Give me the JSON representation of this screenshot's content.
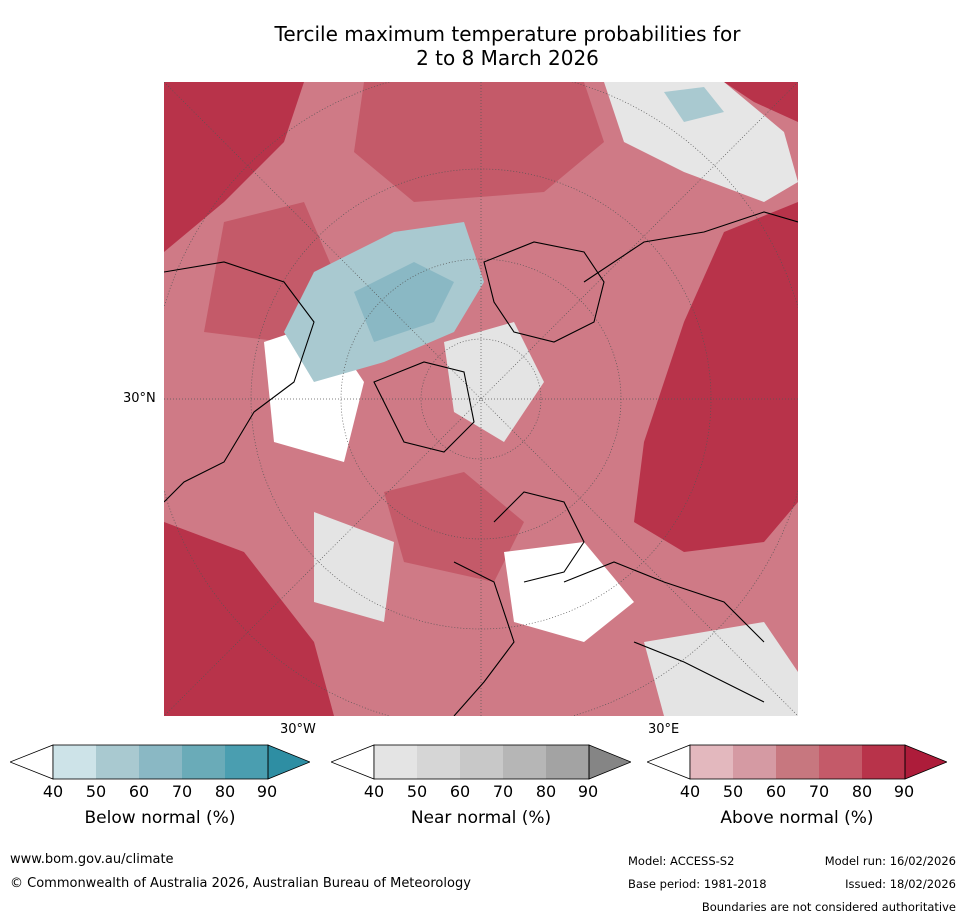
{
  "title": {
    "line1": "Tercile maximum temperature probabilities for",
    "line2": "2 to 8 March 2026"
  },
  "map": {
    "labels": {
      "lat_30n": "30°N",
      "lon_30w": "30°W",
      "lon_30e": "30°E"
    }
  },
  "legend": {
    "ticks": [
      "40",
      "50",
      "60",
      "70",
      "80",
      "90"
    ],
    "below": {
      "label": "Below normal (%)",
      "colors": [
        "#ffffff",
        "#cde3e8",
        "#a9c9d0",
        "#8ab8c4",
        "#6aabb8",
        "#4a9eb0",
        "#2e8ea3"
      ]
    },
    "near": {
      "label": "Near normal (%)",
      "colors": [
        "#ffffff",
        "#e4e4e4",
        "#d6d6d6",
        "#c8c8c8",
        "#b6b6b6",
        "#a3a3a3",
        "#858585"
      ]
    },
    "above": {
      "label": "Above normal (%)",
      "colors": [
        "#ffffff",
        "#e3b8be",
        "#d59aa3",
        "#c7777f",
        "#c45a69",
        "#b8334a",
        "#ad1c3a"
      ]
    }
  },
  "footer": {
    "url": "www.bom.gov.au/climate",
    "copyright": "© Commonwealth of Australia 2026, Australian Bureau of Meteorology",
    "model": "Model: ACCESS-S2",
    "base_period": "Base period: 1981-2018",
    "model_run": "Model run: 16/02/2026",
    "issued": "Issued: 18/02/2026",
    "disclaimer": "Boundaries are not considered authoritative"
  }
}
